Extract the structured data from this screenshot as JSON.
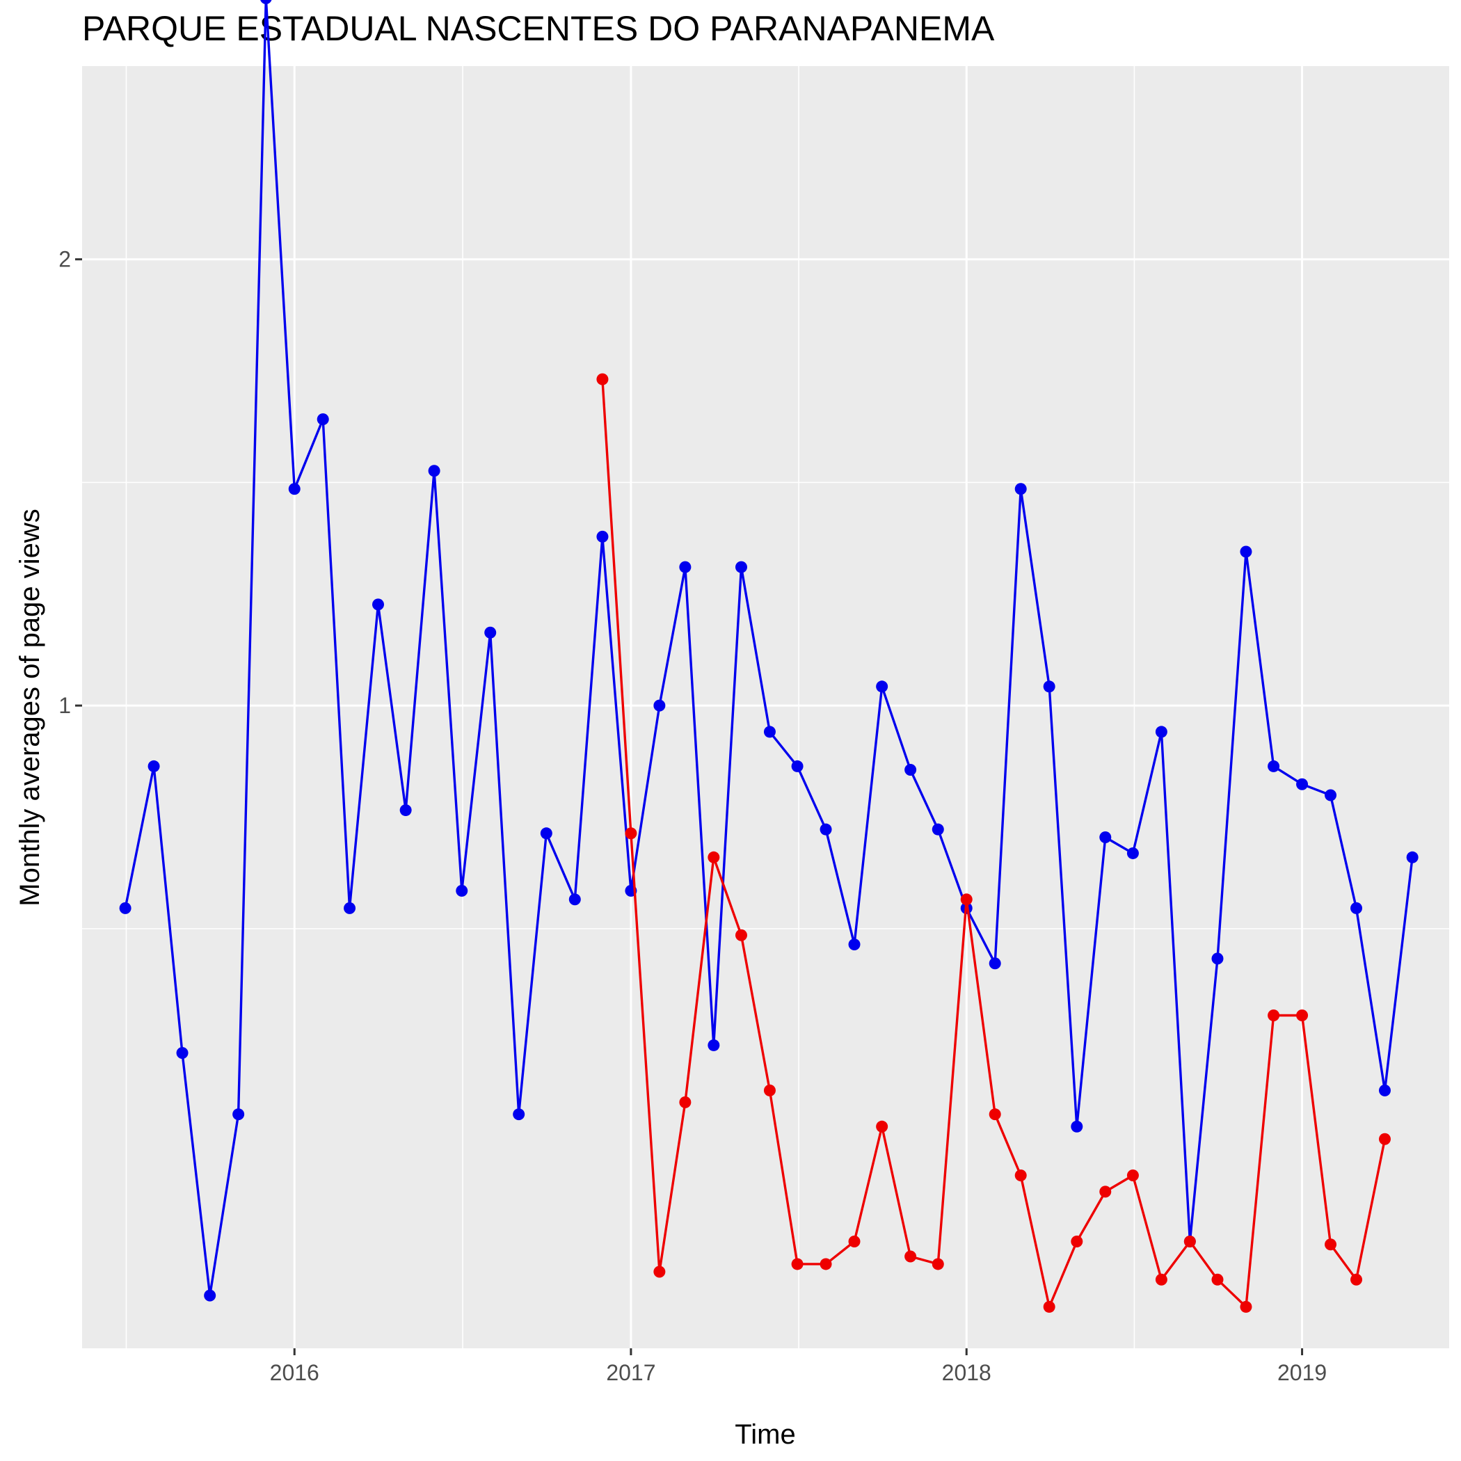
{
  "chart_data": {
    "type": "line",
    "title": "PARQUE ESTADUAL NASCENTES DO PARANAPANEMA",
    "xlabel": "Time",
    "ylabel": "Monthly averages of page views",
    "x_axis_type": "date",
    "y_axis_scale": "log",
    "xlim": [
      "2015-05-15",
      "2019-06-10"
    ],
    "ylim": [
      0.3685,
      2.7
    ],
    "x_ticks": [
      {
        "date": "2016-01-01",
        "label": "2016"
      },
      {
        "date": "2017-01-01",
        "label": "2017"
      },
      {
        "date": "2018-01-01",
        "label": "2018"
      },
      {
        "date": "2019-01-01",
        "label": "2019"
      }
    ],
    "y_ticks": [
      {
        "value": 1,
        "label": "1"
      },
      {
        "value": 2,
        "label": "2"
      }
    ],
    "grid": true,
    "legend": "none",
    "colors": {
      "blue_series": "#0000ee",
      "red_series": "#ee0000",
      "panel": "#ebebeb",
      "grid": "#ffffff"
    },
    "series": [
      {
        "color": "#0000ee",
        "x": [
          "2015-07-01",
          "2015-08-01",
          "2015-09-01",
          "2015-10-01",
          "2015-11-01",
          "2015-12-01",
          "2016-01-01",
          "2016-02-01",
          "2016-03-01",
          "2016-04-01",
          "2016-05-01",
          "2016-06-01",
          "2016-07-01",
          "2016-08-01",
          "2016-09-01",
          "2016-10-01",
          "2016-11-01",
          "2016-12-01",
          "2017-01-01",
          "2017-02-01",
          "2017-03-01",
          "2017-04-01",
          "2017-05-01",
          "2017-06-01",
          "2017-07-01",
          "2017-08-01",
          "2017-09-01",
          "2017-10-01",
          "2017-11-01",
          "2017-12-01",
          "2018-01-01",
          "2018-02-01",
          "2018-03-01",
          "2018-04-01",
          "2018-05-01",
          "2018-06-01",
          "2018-07-01",
          "2018-08-01",
          "2018-09-01",
          "2018-10-01",
          "2018-11-01",
          "2018-12-01",
          "2019-01-01",
          "2019-02-01",
          "2019-03-01",
          "2019-04-01",
          "2019-05-01"
        ],
        "values": [
          0.73,
          0.91,
          0.583,
          0.4,
          0.53,
          3.0,
          1.4,
          1.56,
          0.73,
          1.17,
          0.85,
          1.44,
          0.75,
          1.12,
          0.53,
          0.82,
          0.74,
          1.3,
          0.75,
          1.0,
          1.24,
          0.59,
          1.24,
          0.96,
          0.91,
          0.825,
          0.69,
          1.03,
          0.905,
          0.825,
          0.73,
          0.67,
          1.4,
          1.03,
          0.52,
          0.815,
          0.795,
          0.96,
          0.435,
          0.675,
          1.27,
          0.91,
          0.885,
          0.87,
          0.73,
          0.55,
          0.79
        ]
      },
      {
        "color": "#ee0000",
        "x": [
          "2016-12-01",
          "2017-01-01",
          "2017-02-01",
          "2017-03-01",
          "2017-04-01",
          "2017-05-01",
          "2017-06-01",
          "2017-07-01",
          "2017-08-01",
          "2017-09-01",
          "2017-10-01",
          "2017-11-01",
          "2017-12-01",
          "2018-01-01",
          "2018-02-01",
          "2018-03-01",
          "2018-04-01",
          "2018-05-01",
          "2018-06-01",
          "2018-07-01",
          "2018-08-01",
          "2018-09-01",
          "2018-10-01",
          "2018-11-01",
          "2018-12-01",
          "2019-01-01",
          "2019-02-01",
          "2019-03-01",
          "2019-04-01"
        ],
        "values": [
          1.66,
          0.82,
          0.415,
          0.54,
          0.79,
          0.7,
          0.55,
          0.42,
          0.42,
          0.435,
          0.52,
          0.425,
          0.42,
          0.74,
          0.53,
          0.482,
          0.393,
          0.435,
          0.47,
          0.482,
          0.41,
          0.435,
          0.41,
          0.393,
          0.618,
          0.618,
          0.433,
          0.41,
          0.51
        ]
      }
    ]
  }
}
